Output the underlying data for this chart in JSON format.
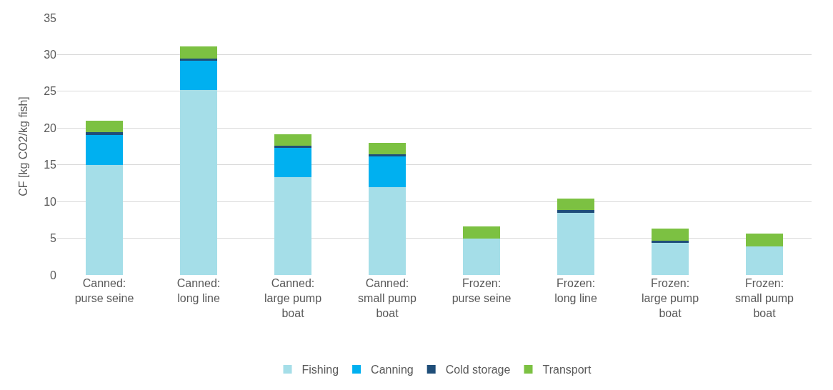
{
  "chart_data": {
    "type": "bar",
    "stacked": true,
    "ylabel": "CF [kg CO2/kg fish]",
    "categories": [
      "Canned: purse seine",
      "Canned: long line",
      "Canned: large pump boat",
      "Canned: small pump boat",
      "Frozen: purse seine",
      "Frozen: long line",
      "Frozen: large pump boat",
      "Frozen: small pump boat"
    ],
    "series": [
      {
        "name": "Fishing",
        "color": "#a5dee8",
        "values": [
          15.0,
          25.2,
          13.3,
          12.0,
          5.0,
          8.5,
          4.4,
          3.9
        ]
      },
      {
        "name": "Canning",
        "color": "#00b0f0",
        "values": [
          4.1,
          4.0,
          4.0,
          4.1,
          0,
          0,
          0,
          0
        ]
      },
      {
        "name": "Cold storage",
        "color": "#1f4e79",
        "values": [
          0.3,
          0.3,
          0.3,
          0.3,
          0,
          0.3,
          0.3,
          0
        ]
      },
      {
        "name": "Transport",
        "color": "#7cc142",
        "values": [
          1.6,
          1.6,
          1.6,
          1.6,
          1.6,
          1.6,
          1.6,
          1.7
        ]
      }
    ],
    "ylim": [
      0,
      35
    ],
    "yticks": [
      0,
      5,
      10,
      15,
      20,
      25,
      30,
      35
    ],
    "grid": "y",
    "legend": "bottom"
  }
}
